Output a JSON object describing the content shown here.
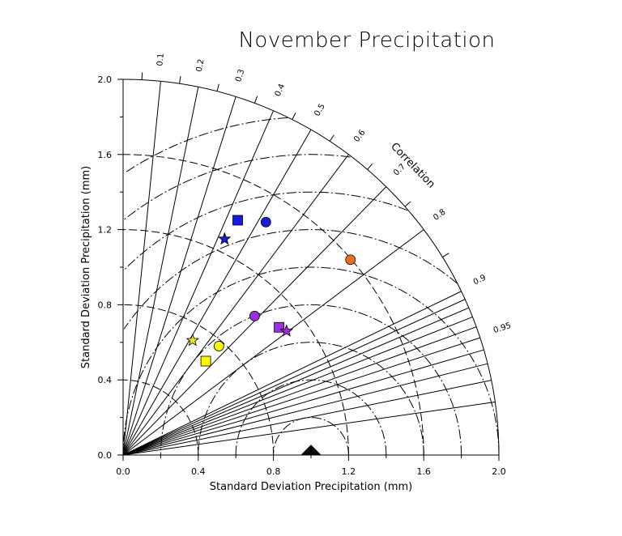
{
  "chart_data": {
    "type": "scatter",
    "subtype": "taylor-diagram",
    "title": "November Precipitation",
    "xlabel": "Standard Deviation Precipitation (mm)",
    "ylabel": "Standard Deviation Precipitation (mm)",
    "corr_axis_label": "Correlation",
    "xlim": [
      0.0,
      2.0
    ],
    "ylim": [
      0.0,
      2.0
    ],
    "ticks": [
      "0.0",
      "0.4",
      "0.8",
      "1.2",
      "1.6",
      "2.0"
    ],
    "tick_values": [
      0.0,
      0.4,
      0.8,
      1.2,
      1.6,
      2.0
    ],
    "correlation_labels": [
      "0.1",
      "0.2",
      "0.3",
      "0.4",
      "0.5",
      "0.6",
      "0.7",
      "0.8",
      "0.9",
      "0.95"
    ],
    "correlation_values": [
      0.1,
      0.2,
      0.3,
      0.4,
      0.5,
      0.6,
      0.7,
      0.8,
      0.9,
      0.95
    ],
    "correlation_lines": [
      0.1,
      0.2,
      0.3,
      0.4,
      0.5,
      0.6,
      0.7,
      0.8,
      0.9,
      0.91,
      0.92,
      0.93,
      0.94,
      0.95,
      0.96,
      0.97,
      0.98,
      0.99
    ],
    "reference": {
      "std": 1.0,
      "marker": "triangle",
      "color": "#000000"
    },
    "points": [
      {
        "x": 0.61,
        "y": 1.25,
        "marker": "square",
        "color": "#1a1adc"
      },
      {
        "x": 0.76,
        "y": 1.24,
        "marker": "circle",
        "color": "#1a1adc"
      },
      {
        "x": 0.54,
        "y": 1.15,
        "marker": "star",
        "color": "#1a1adc"
      },
      {
        "x": 1.21,
        "y": 1.04,
        "marker": "circle",
        "color": "#e87020"
      },
      {
        "x": 0.7,
        "y": 0.74,
        "marker": "circle",
        "color": "#9a30e0"
      },
      {
        "x": 0.83,
        "y": 0.68,
        "marker": "square",
        "color": "#9a30e0"
      },
      {
        "x": 0.87,
        "y": 0.66,
        "marker": "star",
        "color": "#9a30e0"
      },
      {
        "x": 0.37,
        "y": 0.61,
        "marker": "star",
        "color": "#f0e020"
      },
      {
        "x": 0.51,
        "y": 0.58,
        "marker": "circle",
        "color": "#f8f800"
      },
      {
        "x": 0.44,
        "y": 0.5,
        "marker": "square",
        "color": "#f8f800"
      }
    ]
  }
}
